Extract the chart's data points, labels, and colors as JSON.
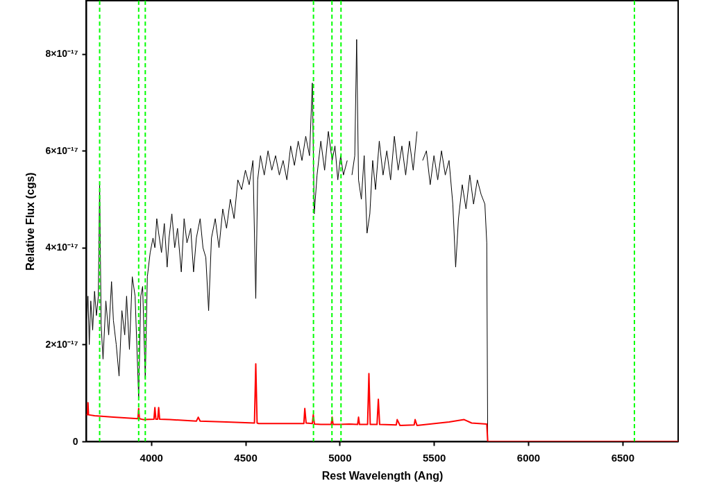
{
  "chart_data": {
    "type": "line",
    "xlabel": "Rest Wavelength (Ang)",
    "ylabel": "Relative Flux (cgs)",
    "xlim": [
      3655,
      6795
    ],
    "ylim": [
      0,
      9.1e-17
    ],
    "xticks": [
      4000,
      4500,
      5000,
      5500,
      6000,
      6500
    ],
    "yticks": [
      0,
      {
        "value": 2e-17,
        "label": "2×10⁻¹⁷"
      },
      {
        "value": 4e-17,
        "label": "4×10⁻¹⁷"
      },
      {
        "value": 6e-17,
        "label": "6×10⁻¹⁷"
      },
      {
        "value": 8e-17,
        "label": "8×10⁻¹⁷"
      }
    ],
    "grid": false,
    "marker": "none",
    "line_style": "solid",
    "series": [
      {
        "color": "#000000",
        "x": [
          3657,
          3665,
          3672,
          3680,
          3690,
          3700,
          3710,
          3720,
          3727,
          3735,
          3745,
          3760,
          3775,
          3790,
          3800,
          3815,
          3830,
          3845,
          3860,
          3870,
          3885,
          3900,
          3915,
          3934,
          3945,
          3955,
          3969,
          3980,
          3995,
          4010,
          4020,
          4030,
          4040,
          4055,
          4070,
          4085,
          4095,
          4110,
          4125,
          4140,
          4160,
          4175,
          4190,
          4210,
          4225,
          4240,
          4260,
          4275,
          4290,
          4305,
          4320,
          4340,
          4360,
          4380,
          4400,
          4420,
          4440,
          4460,
          4480,
          4500,
          4520,
          4540,
          4555,
          4565,
          4580,
          4600,
          4620,
          4640,
          4660,
          4680,
          4700,
          4720,
          4740,
          4760,
          4780,
          4800,
          4820,
          4840,
          4855,
          4865,
          4880,
          4900,
          4920,
          4940,
          4960,
          4975,
          4990,
          5005,
          5020,
          5040,
          5055,
          5065,
          5080,
          5090,
          5100,
          5115,
          5130,
          5145,
          5160,
          5175,
          5190,
          5210,
          5230,
          5250,
          5270,
          5290,
          5310,
          5330,
          5350,
          5370,
          5390,
          5410,
          5425,
          5440,
          5460,
          5480,
          5500,
          5520,
          5540,
          5560,
          5580,
          5600,
          5615,
          5630,
          5650,
          5670,
          5690,
          5710,
          5730,
          5750,
          5770,
          5780,
          5785,
          6795
        ],
        "values": [
          2.5e-17,
          3e-17,
          2e-17,
          2.9e-17,
          2.3e-17,
          3.1e-17,
          2.6e-17,
          3e-17,
          5.3e-17,
          2.4e-17,
          1.7e-17,
          2.9e-17,
          2.2e-17,
          3.3e-17,
          2.5e-17,
          2e-17,
          1.35e-17,
          2.7e-17,
          2.2e-17,
          3e-17,
          1.9e-17,
          3.4e-17,
          3e-17,
          9e-18,
          3e-17,
          3.2e-17,
          1.3e-17,
          3.4e-17,
          3.9e-17,
          4.2e-17,
          4e-17,
          4.6e-17,
          4.3e-17,
          3.9e-17,
          4.5e-17,
          3.6e-17,
          4.2e-17,
          4.7e-17,
          4e-17,
          4.4e-17,
          3.5e-17,
          4.6e-17,
          4.1e-17,
          4.4e-17,
          3.5e-17,
          4.2e-17,
          4.6e-17,
          4e-17,
          3.8e-17,
          2.7e-17,
          4.2e-17,
          4.6e-17,
          4e-17,
          4.8e-17,
          4.4e-17,
          5e-17,
          4.6e-17,
          5.4e-17,
          5.2e-17,
          5.6e-17,
          5.3e-17,
          5.8e-17,
          2.95e-17,
          5.4e-17,
          5.9e-17,
          5.5e-17,
          6e-17,
          5.6e-17,
          5.9e-17,
          5.5e-17,
          5.8e-17,
          5.4e-17,
          6.1e-17,
          5.7e-17,
          6.2e-17,
          5.8e-17,
          6.3e-17,
          5.9e-17,
          7.4e-17,
          4.7e-17,
          5.5e-17,
          6.2e-17,
          5.6e-17,
          6.4e-17,
          5.8e-17,
          6.1e-17,
          5.4e-17,
          5.9e-17,
          5.5e-17,
          5.8e-17,
          null,
          5.5e-17,
          5.9e-17,
          8.3e-17,
          5.4e-17,
          5e-17,
          5.9e-17,
          4.3e-17,
          4.7e-17,
          5.8e-17,
          5.2e-17,
          6.2e-17,
          5.5e-17,
          6e-17,
          5.4e-17,
          6.3e-17,
          5.6e-17,
          6.1e-17,
          5.5e-17,
          6.2e-17,
          5.6e-17,
          6.4e-17,
          null,
          5.8e-17,
          6e-17,
          5.3e-17,
          5.9e-17,
          5.4e-17,
          6e-17,
          5.5e-17,
          5.8e-17,
          4.9e-17,
          3.6e-17,
          4.6e-17,
          5.3e-17,
          4.8e-17,
          5.5e-17,
          4.9e-17,
          5.4e-17,
          5.1e-17,
          4.9e-17,
          4.1e-17,
          0,
          0
        ]
      },
      {
        "color": "#ff0000",
        "x": [
          3657,
          3662,
          3665,
          3668,
          3700,
          3800,
          3930,
          3934,
          3938,
          3960,
          4015,
          4020,
          4025,
          4035,
          4040,
          4045,
          4100,
          4240,
          4250,
          4260,
          4400,
          4548,
          4555,
          4562,
          4570,
          4810,
          4815,
          4822,
          4855,
          4860,
          4866,
          4900,
          4955,
          4960,
          4965,
          5000,
          5050,
          5095,
          5100,
          5105,
          5148,
          5155,
          5162,
          5198,
          5205,
          5212,
          5300,
          5305,
          5320,
          5395,
          5400,
          5410,
          5580,
          5660,
          5700,
          5780,
          5785,
          6795
        ],
        "values": [
          5.5e-18,
          5.5e-18,
          8e-18,
          5.5e-18,
          5.3e-18,
          5e-18,
          4.7e-18,
          6.8e-18,
          4.7e-18,
          4.5e-18,
          4.6e-18,
          7e-18,
          4.6e-18,
          4.6e-18,
          7e-18,
          4.6e-18,
          4.5e-18,
          4.2e-18,
          5e-18,
          4.2e-18,
          4e-18,
          3.8e-18,
          1.6e-17,
          3.8e-18,
          3.7e-18,
          3.7e-18,
          6.8e-18,
          3.8e-18,
          3.7e-18,
          5.5e-18,
          3.6e-18,
          3.5e-18,
          3.5e-18,
          5e-18,
          3.5e-18,
          3.5e-18,
          3.6e-18,
          3.5e-18,
          5e-18,
          3.5e-18,
          3.5e-18,
          1.4e-17,
          3.5e-18,
          3.5e-18,
          8.7e-18,
          3.5e-18,
          3.4e-18,
          4.5e-18,
          3.3e-18,
          3.4e-18,
          4.5e-18,
          3.3e-18,
          4e-18,
          4.5e-18,
          3.8e-18,
          3.6e-18,
          0,
          0
        ]
      }
    ],
    "ref_lines": [
      {
        "axis": "x",
        "value": 3727,
        "color": "#00ff00",
        "line_style": "dashed"
      },
      {
        "axis": "x",
        "value": 3934,
        "color": "#00ff00",
        "line_style": "dashed"
      },
      {
        "axis": "x",
        "value": 3969,
        "color": "#00ff00",
        "line_style": "dashed"
      },
      {
        "axis": "x",
        "value": 4861,
        "color": "#00ff00",
        "line_style": "dashed"
      },
      {
        "axis": "x",
        "value": 4959,
        "color": "#00ff00",
        "line_style": "dashed"
      },
      {
        "axis": "x",
        "value": 5007,
        "color": "#00ff00",
        "line_style": "dashed"
      },
      {
        "axis": "x",
        "value": 6563,
        "color": "#00ff00",
        "line_style": "dashed"
      }
    ]
  }
}
